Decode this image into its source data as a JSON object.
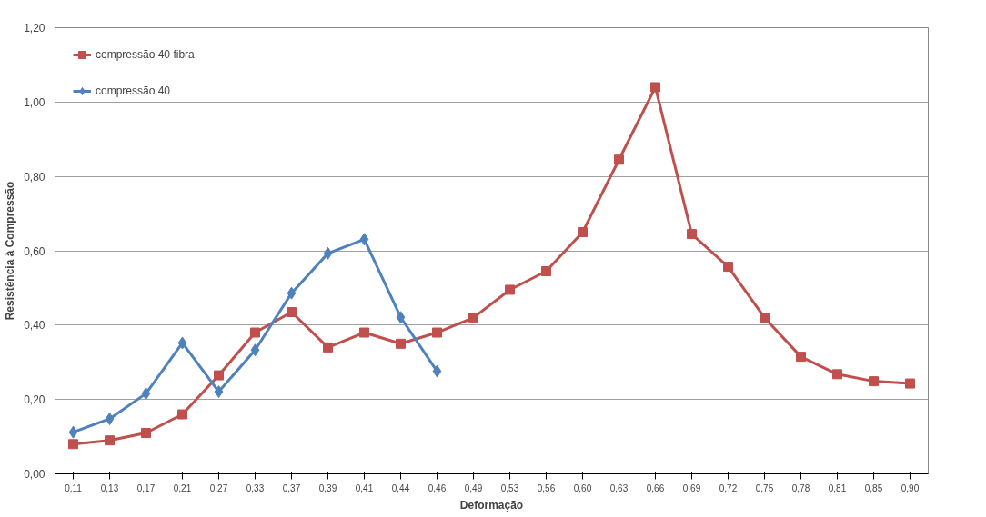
{
  "chart_data": {
    "type": "line",
    "xlabel": "Deformação",
    "ylabel": "Resistência à Compressão",
    "categories": [
      "0,11",
      "0,13",
      "0,17",
      "0,21",
      "0,27",
      "0,33",
      "0,37",
      "0,39",
      "0,41",
      "0,44",
      "0,46",
      "0,49",
      "0,53",
      "0,56",
      "0,60",
      "0,63",
      "0,66",
      "0,69",
      "0,72",
      "0,75",
      "0,78",
      "0,81",
      "0,85",
      "0,90"
    ],
    "series": [
      {
        "name": "compressão 40 fibra",
        "color": "#c0504d",
        "marker": "square",
        "values": [
          0.08,
          0.09,
          0.11,
          0.16,
          0.265,
          0.38,
          0.435,
          0.34,
          0.38,
          0.35,
          0.38,
          0.42,
          0.495,
          0.545,
          0.65,
          0.845,
          1.04,
          0.645,
          0.557,
          0.42,
          0.315,
          0.268,
          0.249,
          0.243
        ]
      },
      {
        "name": "compressão 40",
        "color": "#4f81bd",
        "marker": "diamond",
        "values": [
          0.112,
          0.148,
          0.216,
          0.352,
          0.221,
          0.333,
          0.486,
          0.593,
          0.631,
          0.421,
          0.276,
          null,
          null,
          null,
          null,
          null,
          null,
          null,
          null,
          null,
          null,
          null,
          null,
          null
        ]
      }
    ],
    "ylim": [
      0,
      1.2
    ],
    "yticks": [
      {
        "value": 0,
        "label": "0,00"
      },
      {
        "value": 0.2,
        "label": "0,20"
      },
      {
        "value": 0.4,
        "label": "0,40"
      },
      {
        "value": 0.6,
        "label": "0,60"
      },
      {
        "value": 0.8,
        "label": "0,80"
      },
      {
        "value": 1.0,
        "label": "1,00"
      },
      {
        "value": 1.2,
        "label": "1,20"
      }
    ],
    "grid": "y",
    "legend": "top left",
    "line_style": "solid"
  }
}
